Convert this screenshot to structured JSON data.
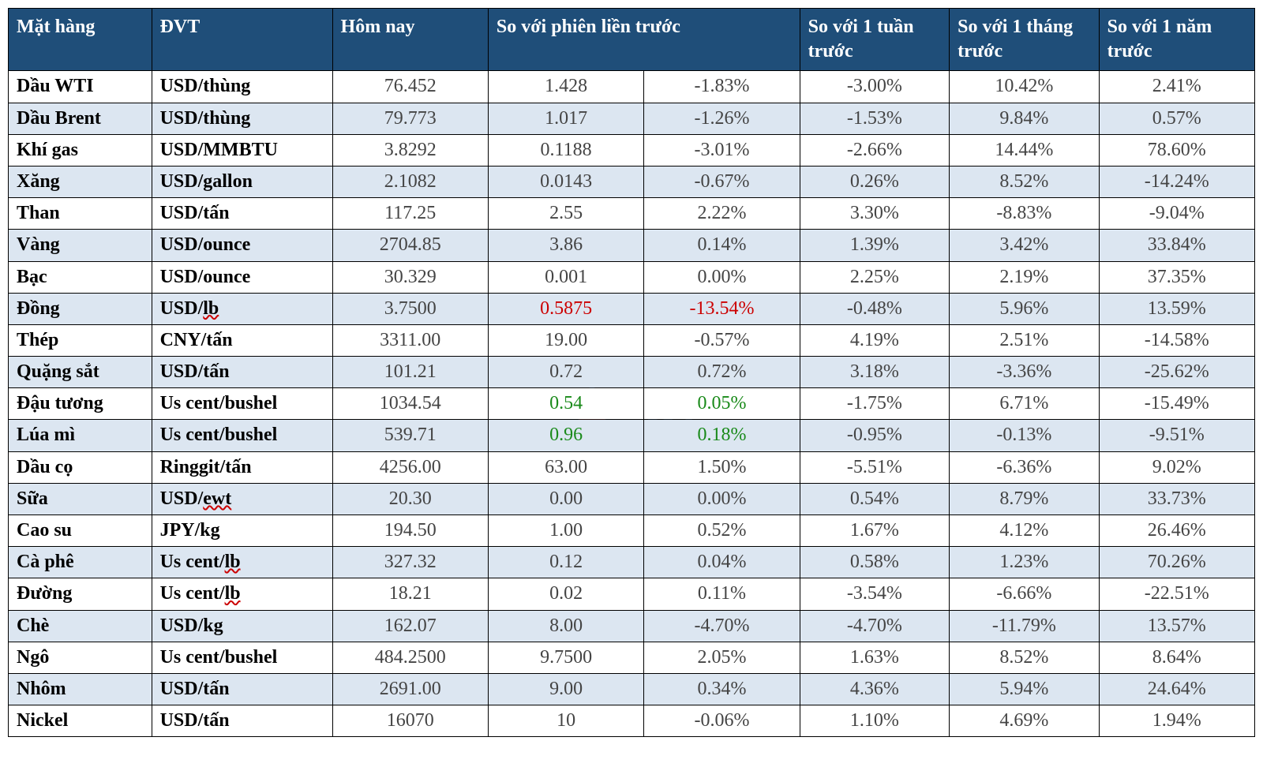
{
  "table": {
    "header_bg": "#1f4e79",
    "header_fg": "#ffffff",
    "alt_row_bg": "#dce6f1",
    "border_color": "#000000",
    "text_color": "#444444",
    "green": "#1a8a1a",
    "red": "#cc0000",
    "col_widths_pct": [
      11.5,
      14.5,
      12.5,
      12.5,
      12.5,
      12,
      12,
      12.5
    ],
    "columns": [
      {
        "label": "Mặt hàng"
      },
      {
        "label": "ĐVT"
      },
      {
        "label": "Hôm nay"
      },
      {
        "label": "So với phiên liền trước",
        "colspan": 2
      },
      {
        "label": "So với 1 tuần trước"
      },
      {
        "label": "So với 1 tháng trước"
      },
      {
        "label": "So với 1 năm trước"
      }
    ],
    "rows": [
      {
        "item": "Dầu WTI",
        "unit": "USD/thùng",
        "today": "76.452",
        "d_abs": "1.428",
        "d_pct": "-1.83%",
        "w": "-3.00%",
        "m": "10.42%",
        "y": "2.41%"
      },
      {
        "item": "Dầu Brent",
        "unit": "USD/thùng",
        "today": "79.773",
        "d_abs": "1.017",
        "d_pct": "-1.26%",
        "w": "-1.53%",
        "m": "9.84%",
        "y": "0.57%"
      },
      {
        "item": "Khí gas",
        "unit": "USD/MMBTU",
        "today": "3.8292",
        "d_abs": "0.1188",
        "d_pct": "-3.01%",
        "w": "-2.66%",
        "m": "14.44%",
        "y": "78.60%"
      },
      {
        "item": "Xăng",
        "unit": "USD/gallon",
        "today": "2.1082",
        "d_abs": "0.0143",
        "d_pct": "-0.67%",
        "w": "0.26%",
        "m": "8.52%",
        "y": "-14.24%"
      },
      {
        "item": "Than",
        "unit": "USD/tấn",
        "today": "117.25",
        "d_abs": "2.55",
        "d_pct": "2.22%",
        "w": "3.30%",
        "m": "-8.83%",
        "y": "-9.04%"
      },
      {
        "item": "Vàng",
        "unit": "USD/ounce",
        "today": "2704.85",
        "d_abs": "3.86",
        "d_pct": "0.14%",
        "w": "1.39%",
        "m": "3.42%",
        "y": "33.84%"
      },
      {
        "item": "Bạc",
        "unit": "USD/ounce",
        "today": "30.329",
        "d_abs": "0.001",
        "d_pct": "0.00%",
        "w": "2.25%",
        "m": "2.19%",
        "y": "37.35%"
      },
      {
        "item": "Đồng",
        "unit": "USD/lb",
        "unit_wave": "lb",
        "today": "3.7500",
        "d_abs": "0.5875",
        "d_abs_color": "red",
        "d_pct": "-13.54%",
        "d_pct_color": "red",
        "w": "-0.48%",
        "m": "5.96%",
        "y": "13.59%"
      },
      {
        "item": "Thép",
        "unit": "CNY/tấn",
        "today": "3311.00",
        "d_abs": "19.00",
        "d_pct": "-0.57%",
        "w": "4.19%",
        "m": "2.51%",
        "y": "-14.58%"
      },
      {
        "item": "Quặng sắt",
        "unit": "USD/tấn",
        "today": "101.21",
        "d_abs": "0.72",
        "d_pct": "0.72%",
        "w": "3.18%",
        "m": "-3.36%",
        "y": "-25.62%"
      },
      {
        "item": "Đậu tương",
        "unit": "Us cent/bushel",
        "today": "1034.54",
        "d_abs": "0.54",
        "d_abs_color": "green",
        "d_pct": "0.05%",
        "d_pct_color": "green",
        "w": "-1.75%",
        "m": "6.71%",
        "y": "-15.49%"
      },
      {
        "item": "Lúa mì",
        "unit": "Us cent/bushel",
        "today": "539.71",
        "d_abs": "0.96",
        "d_abs_color": "green",
        "d_pct": "0.18%",
        "d_pct_color": "green",
        "w": "-0.95%",
        "m": "-0.13%",
        "y": "-9.51%"
      },
      {
        "item": "Dầu cọ",
        "unit": "Ringgit/tấn",
        "today": "4256.00",
        "d_abs": "63.00",
        "d_pct": "1.50%",
        "w": "-5.51%",
        "m": "-6.36%",
        "y": "9.02%"
      },
      {
        "item": "Sữa",
        "unit": "USD/ewt",
        "unit_wave": "ewt",
        "today": "20.30",
        "d_abs": "0.00",
        "d_pct": "0.00%",
        "w": "0.54%",
        "m": "8.79%",
        "y": "33.73%"
      },
      {
        "item": "Cao su",
        "unit": "JPY/kg",
        "today": "194.50",
        "d_abs": "1.00",
        "d_pct": "0.52%",
        "w": "1.67%",
        "m": "4.12%",
        "y": "26.46%"
      },
      {
        "item": "Cà phê",
        "unit": "Us cent/lb",
        "unit_wave": "lb",
        "today": "327.32",
        "d_abs": "0.12",
        "d_pct": "0.04%",
        "w": "0.58%",
        "m": "1.23%",
        "y": "70.26%"
      },
      {
        "item": "Đường",
        "unit": "Us cent/lb",
        "unit_wave": "lb",
        "today": "18.21",
        "d_abs": "0.02",
        "d_pct": "0.11%",
        "w": "-3.54%",
        "m": "-6.66%",
        "y": "-22.51%"
      },
      {
        "item": "Chè",
        "unit": "USD/kg",
        "today": "162.07",
        "d_abs": "8.00",
        "d_pct": "-4.70%",
        "w": "-4.70%",
        "m": "-11.79%",
        "y": "13.57%"
      },
      {
        "item": "Ngô",
        "unit": "Us cent/bushel",
        "today": "484.2500",
        "d_abs": "9.7500",
        "d_pct": "2.05%",
        "w": "1.63%",
        "m": "8.52%",
        "y": "8.64%"
      },
      {
        "item": "Nhôm",
        "unit": "USD/tấn",
        "today": "2691.00",
        "d_abs": "9.00",
        "d_pct": "0.34%",
        "w": "4.36%",
        "m": "5.94%",
        "y": "24.64%"
      },
      {
        "item": "Nickel",
        "unit": "USD/tấn",
        "today": "16070",
        "d_abs": "10",
        "d_pct": "-0.06%",
        "w": "1.10%",
        "m": "4.69%",
        "y": "1.94%"
      }
    ]
  }
}
